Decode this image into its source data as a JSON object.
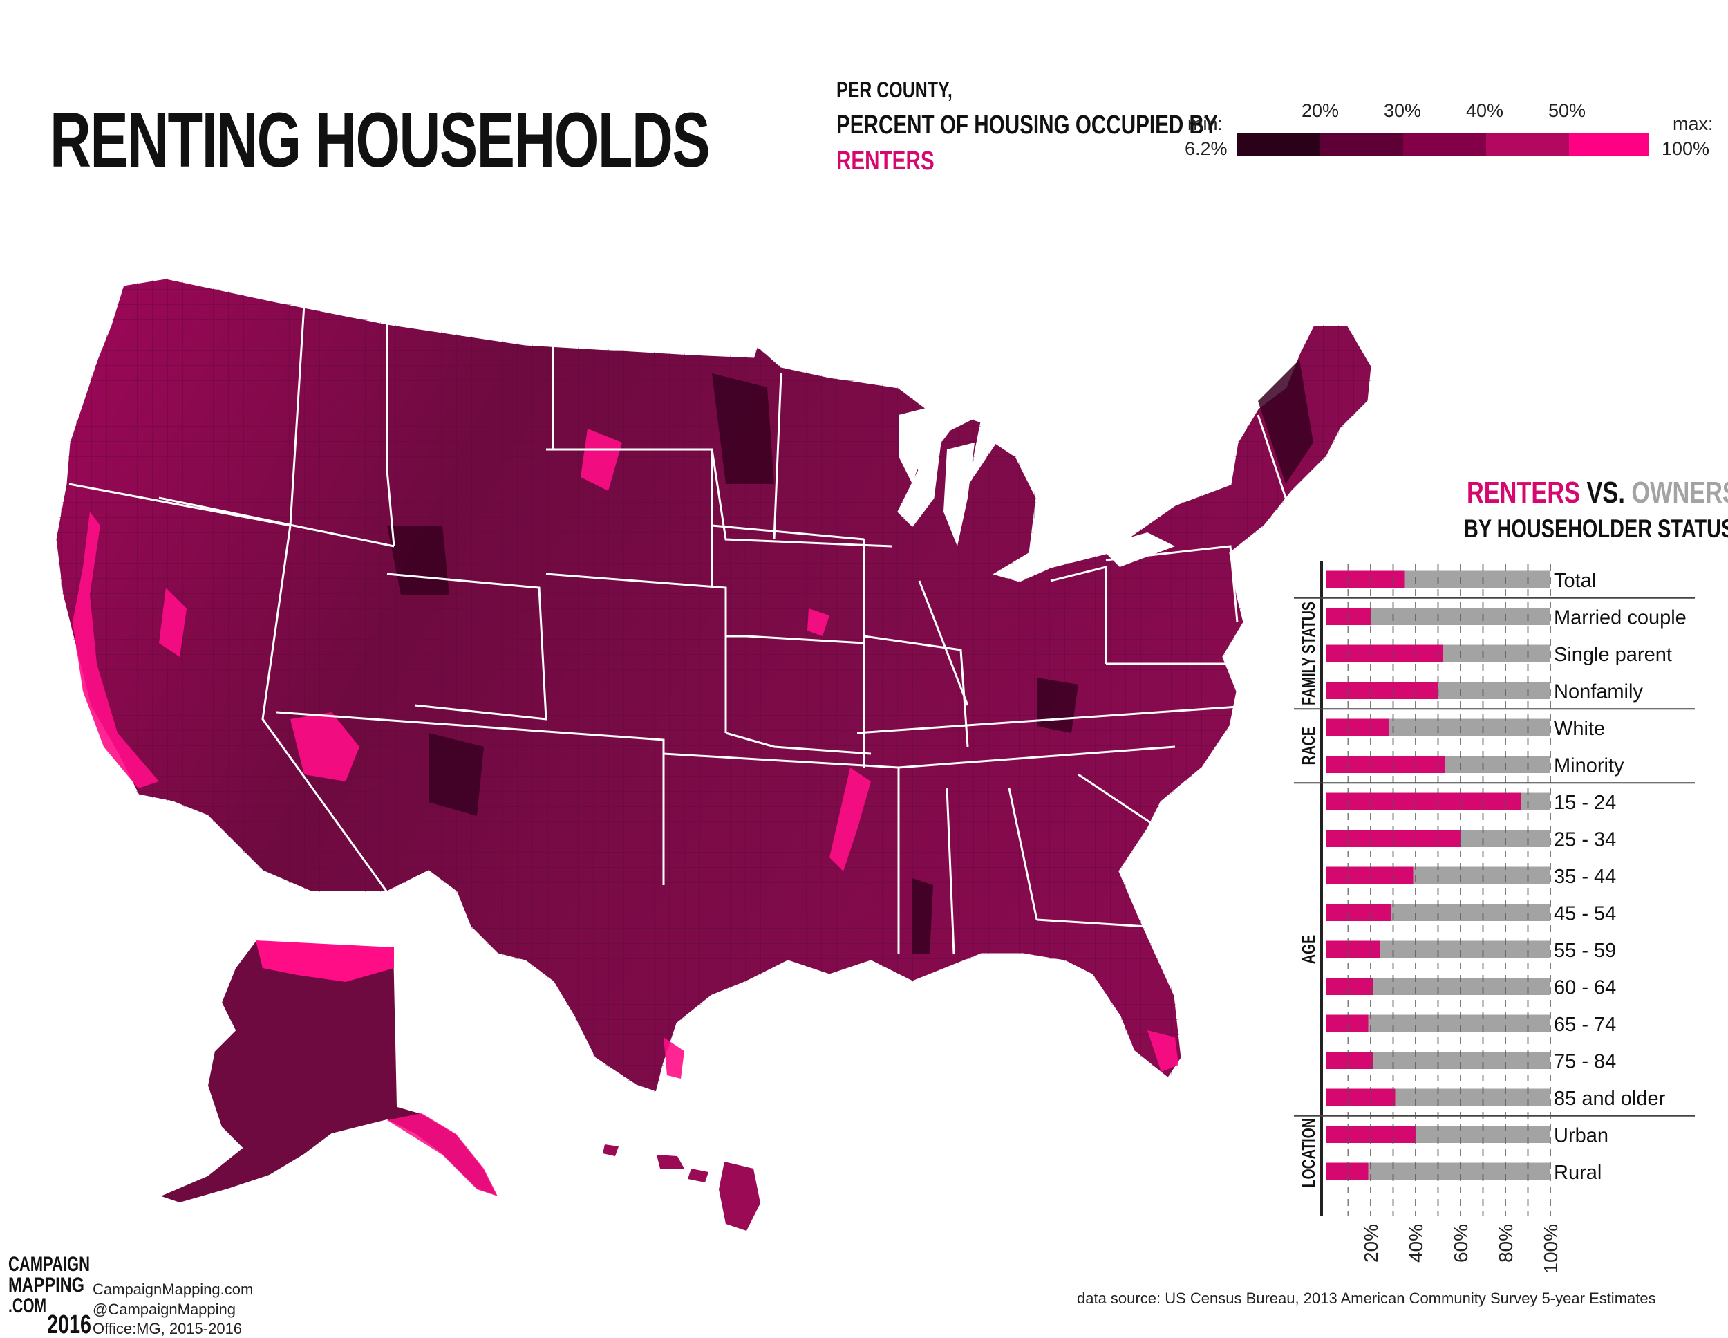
{
  "title": "RENTING HOUSEHOLDS",
  "subtitle": {
    "line1": "PER COUNTY,",
    "line2": "PERCENT OF HOUSING OCCUPIED BY",
    "line3": "RENTERS"
  },
  "legend": {
    "min_label": "min:",
    "min_value": "6.2%",
    "max_label": "max:",
    "max_value": "100%",
    "ticks": [
      "20%",
      "30%",
      "40%",
      "50%"
    ],
    "colors": [
      "#2b0019",
      "#5e0036",
      "#830049",
      "#b3085f",
      "#ff0085"
    ]
  },
  "colors": {
    "accent": "#d4086f",
    "owners": "#a3a3a3",
    "background": "#ffffff",
    "state_border": "#ffffff"
  },
  "bar_panel": {
    "title_renters": "RENTERS",
    "title_vs": " VS. ",
    "title_owners": "OWNERS",
    "subtitle": "BY HOUSEHOLDER STATUS",
    "axis_ticks": [
      "20%",
      "40%",
      "60%",
      "80%",
      "100%"
    ]
  },
  "chart_data": {
    "type": "bar",
    "orientation": "horizontal stacked",
    "title": "RENTERS VS. OWNERS",
    "subtitle": "BY HOUSEHOLDER STATUS",
    "xlim": [
      0,
      100
    ],
    "groups": [
      {
        "name": "",
        "rows": [
          {
            "label": "Total",
            "renters": 35
          }
        ]
      },
      {
        "name": "FAMILY STATUS",
        "rows": [
          {
            "label": "Married couple",
            "renters": 20
          },
          {
            "label": "Single parent",
            "renters": 52
          },
          {
            "label": "Nonfamily",
            "renters": 50
          }
        ]
      },
      {
        "name": "RACE",
        "rows": [
          {
            "label": "White",
            "renters": 28
          },
          {
            "label": "Minority",
            "renters": 53
          }
        ]
      },
      {
        "name": "AGE",
        "rows": [
          {
            "label": "15 - 24",
            "renters": 87
          },
          {
            "label": "25 - 34",
            "renters": 60
          },
          {
            "label": "35 - 44",
            "renters": 39
          },
          {
            "label": "45 - 54",
            "renters": 29
          },
          {
            "label": "55 - 59",
            "renters": 24
          },
          {
            "label": "60 - 64",
            "renters": 21
          },
          {
            "label": "65 - 74",
            "renters": 19
          },
          {
            "label": "75 - 84",
            "renters": 21
          },
          {
            "label": "85 and older",
            "renters": 31
          }
        ]
      },
      {
        "name": "LOCATION",
        "rows": [
          {
            "label": "Urban",
            "renters": 40
          },
          {
            "label": "Rural",
            "renters": 19
          }
        ]
      }
    ],
    "series": [
      {
        "name": "RENTERS",
        "color": "#d4086f"
      },
      {
        "name": "OWNERS",
        "color": "#a3a3a3"
      }
    ]
  },
  "footer": {
    "logo_text": "CAMPAIGN MAPPING .COM 2016",
    "site": "CampaignMapping.com",
    "handle": "@CampaignMapping",
    "office": "Office:MG, 2015-2016",
    "source": "data source: US Census Bureau, 2013 American Community Survey 5-year Estimates"
  }
}
